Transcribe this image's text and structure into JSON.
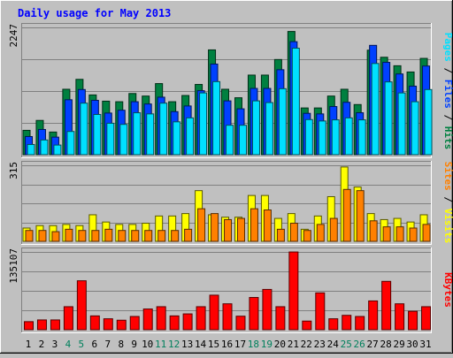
{
  "title": "Daily usage for May 2013",
  "colors": {
    "hits": "#008040",
    "files": "#0040ff",
    "pages": "#00e0ff",
    "visits": "#ffff00",
    "sites": "#ff8000",
    "kbytes": "#ff0000",
    "weekend_label": "#00805c",
    "title": "#0000ff"
  },
  "chart_data": [
    {
      "type": "bar",
      "panel": "requests",
      "ymax_label": "2247",
      "ylim": [
        0,
        2247
      ],
      "categories": [
        "1",
        "2",
        "3",
        "4",
        "5",
        "6",
        "7",
        "8",
        "9",
        "10",
        "11",
        "12",
        "13",
        "14",
        "15",
        "16",
        "17",
        "18",
        "19",
        "20",
        "21",
        "22",
        "23",
        "24",
        "25",
        "26",
        "27",
        "28",
        "29",
        "30",
        "31"
      ],
      "legend": [
        {
          "label": "Pages",
          "color": "#00e0ff"
        },
        {
          "label": "Files",
          "color": "#0040ff"
        },
        {
          "label": "Hits",
          "color": "#008040"
        }
      ],
      "separator": "/",
      "series": [
        {
          "name": "Hits",
          "values": [
            430,
            605,
            400,
            1155,
            1330,
            1055,
            945,
            935,
            1080,
            1035,
            1255,
            935,
            1045,
            1240,
            1850,
            1155,
            1005,
            1405,
            1405,
            1680,
            2175,
            825,
            825,
            1035,
            1155,
            885,
            1845,
            1720,
            1570,
            1460,
            1700
          ]
        },
        {
          "name": "Files",
          "values": [
            320,
            445,
            310,
            970,
            1150,
            960,
            735,
            785,
            935,
            895,
            1015,
            760,
            860,
            1130,
            1600,
            950,
            810,
            1170,
            1170,
            1500,
            1995,
            730,
            720,
            850,
            925,
            740,
            1930,
            1630,
            1425,
            1210,
            1565
          ]
        },
        {
          "name": "Pages",
          "values": [
            180,
            260,
            170,
            410,
            910,
            710,
            555,
            535,
            740,
            720,
            910,
            580,
            650,
            1090,
            1290,
            520,
            520,
            950,
            920,
            1165,
            1880,
            620,
            595,
            615,
            650,
            615,
            1610,
            1285,
            1090,
            935,
            1150
          ]
        }
      ]
    },
    {
      "type": "bar",
      "panel": "visitors",
      "ymax_label": "315",
      "ylim": [
        0,
        315
      ],
      "categories": [
        "1",
        "2",
        "3",
        "4",
        "5",
        "6",
        "7",
        "8",
        "9",
        "10",
        "11",
        "12",
        "13",
        "14",
        "15",
        "16",
        "17",
        "18",
        "19",
        "20",
        "21",
        "22",
        "23",
        "24",
        "25",
        "26",
        "27",
        "28",
        "29",
        "30",
        "31"
      ],
      "legend": [
        {
          "label": "Sites",
          "color": "#ff8000"
        },
        {
          "label": "Visits",
          "color": "#ffff00"
        }
      ],
      "separator": "/",
      "series": [
        {
          "name": "Visits",
          "values": [
            55,
            65,
            65,
            70,
            65,
            110,
            80,
            70,
            70,
            75,
            105,
            105,
            115,
            210,
            110,
            100,
            100,
            190,
            190,
            95,
            115,
            50,
            105,
            185,
            308,
            225,
            115,
            90,
            95,
            80,
            110
          ]
        },
        {
          "name": "Sites",
          "values": [
            45,
            45,
            40,
            50,
            45,
            45,
            50,
            45,
            45,
            45,
            45,
            45,
            50,
            135,
            115,
            90,
            95,
            135,
            130,
            50,
            75,
            45,
            70,
            95,
            215,
            210,
            85,
            60,
            60,
            55,
            70
          ]
        }
      ]
    },
    {
      "type": "bar",
      "panel": "kbytes",
      "ymax_label": "135107",
      "ylim": [
        0,
        135107
      ],
      "categories": [
        "1",
        "2",
        "3",
        "4",
        "5",
        "6",
        "7",
        "8",
        "9",
        "10",
        "11",
        "12",
        "13",
        "14",
        "15",
        "16",
        "17",
        "18",
        "19",
        "20",
        "21",
        "22",
        "23",
        "24",
        "25",
        "26",
        "27",
        "28",
        "29",
        "30",
        "31"
      ],
      "legend": [
        {
          "label": "KBytes",
          "color": "#ff0000"
        }
      ],
      "series": [
        {
          "name": "KBytes",
          "values": [
            14000,
            17000,
            17000,
            40000,
            85000,
            24000,
            19000,
            16500,
            23000,
            36000,
            40000,
            24000,
            27500,
            40000,
            60000,
            45000,
            23500,
            56000,
            70000,
            40000,
            135000,
            15000,
            64000,
            19000,
            25000,
            23000,
            50000,
            84000,
            45000,
            32000,
            40000
          ]
        }
      ]
    }
  ],
  "x_axis": {
    "labels": [
      "1",
      "2",
      "3",
      "4",
      "5",
      "6",
      "7",
      "8",
      "9",
      "10",
      "11",
      "12",
      "13",
      "14",
      "15",
      "16",
      "17",
      "18",
      "19",
      "20",
      "21",
      "22",
      "23",
      "24",
      "25",
      "26",
      "27",
      "28",
      "29",
      "30",
      "31"
    ],
    "weekend_days": [
      "4",
      "5",
      "11",
      "12",
      "18",
      "19",
      "25",
      "26"
    ]
  }
}
